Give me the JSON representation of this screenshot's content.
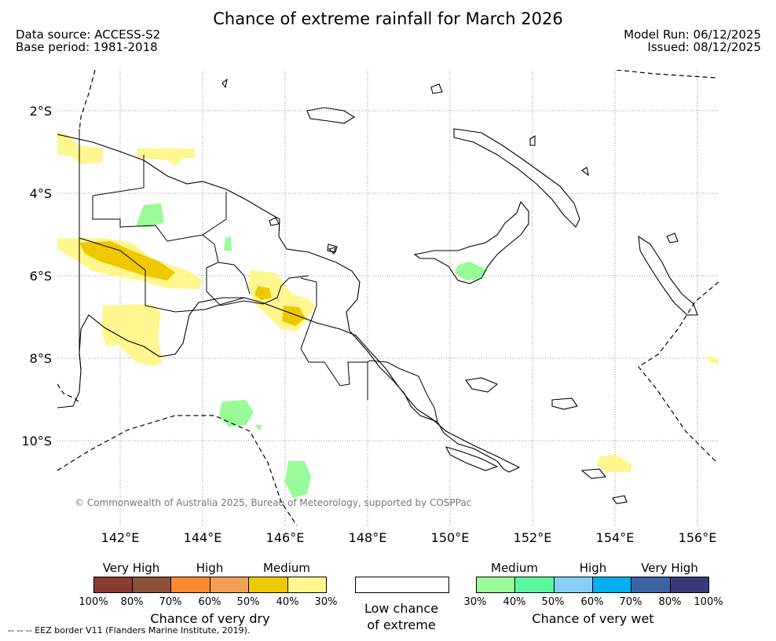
{
  "title": "Chance of extreme rainfall for March 2026",
  "header": {
    "data_source": "Data source: ACCESS-S2",
    "base_period": "Base period: 1981-2018",
    "model_run": "Model Run: 06/12/2025",
    "issued": "Issued: 08/12/2025"
  },
  "map": {
    "lat_labels": [
      "2°S",
      "4°S",
      "6°S",
      "8°S",
      "10°S"
    ],
    "lon_labels": [
      "142°E",
      "144°E",
      "146°E",
      "148°E",
      "150°E",
      "152°E",
      "154°E",
      "156°E"
    ],
    "copyright": "© Commonwealth of Australia 2025, Bureau of Meteorology, supported by COSPPac"
  },
  "legend": {
    "dry": {
      "categories": [
        "Very High",
        "High",
        "Medium"
      ],
      "caption": "Chance of very dry",
      "percents": [
        "100%",
        "80%",
        "70%",
        "60%",
        "50%",
        "40%",
        "30%"
      ],
      "colors": [
        "#8b3a30",
        "#8c4f3a",
        "#ff8a2e",
        "#f0a050",
        "#efc800",
        "#fff68f"
      ]
    },
    "neutral": {
      "caption_line1": "Low chance",
      "caption_line2": "of extreme",
      "color": "#ffffff"
    },
    "wet": {
      "categories": [
        "Medium",
        "High",
        "Very High"
      ],
      "caption": "Chance of very wet",
      "percents": [
        "30%",
        "40%",
        "50%",
        "60%",
        "70%",
        "80%",
        "100%"
      ],
      "colors": [
        "#98fb98",
        "#5cf89e",
        "#87cefa",
        "#00b0f0",
        "#3a64a4",
        "#3a3a7a"
      ]
    }
  },
  "eez_note": "--  --  -- EEZ border V11 (Flanders Marine Institute, 2019).",
  "colors": {
    "dry_light": "#fff68f",
    "dry_medium": "#efc800",
    "wet_light": "#98fb98",
    "coast": "#000000",
    "grid": "#777777"
  }
}
